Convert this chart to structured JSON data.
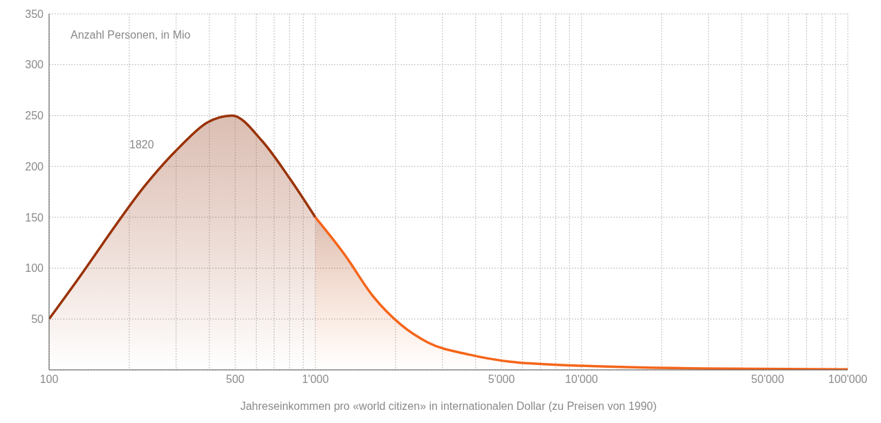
{
  "chart_data": {
    "type": "area",
    "ylabel": "Anzahl Personen, in Mio",
    "xlabel": "Jahreseinkommen pro «world citizen» in internationalen Dollar (zu Preisen von 1990)",
    "log": "x",
    "xlim": [
      100,
      100000
    ],
    "xticks": [
      100,
      {
        "value": 200,
        "label": null
      },
      {
        "value": 300,
        "label": null
      },
      {
        "value": 400,
        "label": null
      },
      500,
      {
        "value": 600,
        "label": null
      },
      {
        "value": 700,
        "label": null
      },
      {
        "value": 800,
        "label": null
      },
      {
        "value": 900,
        "label": null
      },
      {
        "value": 1000,
        "label": "1'000"
      },
      {
        "value": 2000,
        "label": null
      },
      {
        "value": 3000,
        "label": null
      },
      {
        "value": 4000,
        "label": null
      },
      {
        "value": 5000,
        "label": "5'000"
      },
      {
        "value": 6000,
        "label": null
      },
      {
        "value": 7000,
        "label": null
      },
      {
        "value": 8000,
        "label": null
      },
      {
        "value": 9000,
        "label": null
      },
      {
        "value": 10000,
        "label": "10'000"
      },
      {
        "value": 20000,
        "label": null
      },
      {
        "value": 30000,
        "label": null
      },
      {
        "value": 40000,
        "label": null
      },
      {
        "value": 50000,
        "label": "50'000"
      },
      {
        "value": 60000,
        "label": null
      },
      {
        "value": 70000,
        "label": null
      },
      {
        "value": 80000,
        "label": null
      },
      {
        "value": 90000,
        "label": null
      },
      {
        "value": 100000,
        "label": "100'000"
      }
    ],
    "ylim": [
      0,
      350
    ],
    "yticks": [
      50,
      100,
      150,
      200,
      250,
      300,
      350
    ],
    "grid": true,
    "annotations": [
      "1820"
    ],
    "series": [
      {
        "color": "#9a3208",
        "x": [
          100,
          134,
          160,
          229,
          309,
          392,
          486,
          631,
          802,
          1000
        ],
        "values": [
          50,
          96,
          125,
          181,
          219,
          243,
          250,
          225,
          188,
          150
        ]
      },
      {
        "color": "#f5651a",
        "x": [
          1000,
          1291,
          1640,
          2083,
          2645,
          3784,
          5410,
          10000,
          25500,
          100000
        ],
        "values": [
          150,
          113,
          73,
          45,
          27,
          15,
          8,
          4,
          1.5,
          0.5
        ]
      }
    ]
  }
}
